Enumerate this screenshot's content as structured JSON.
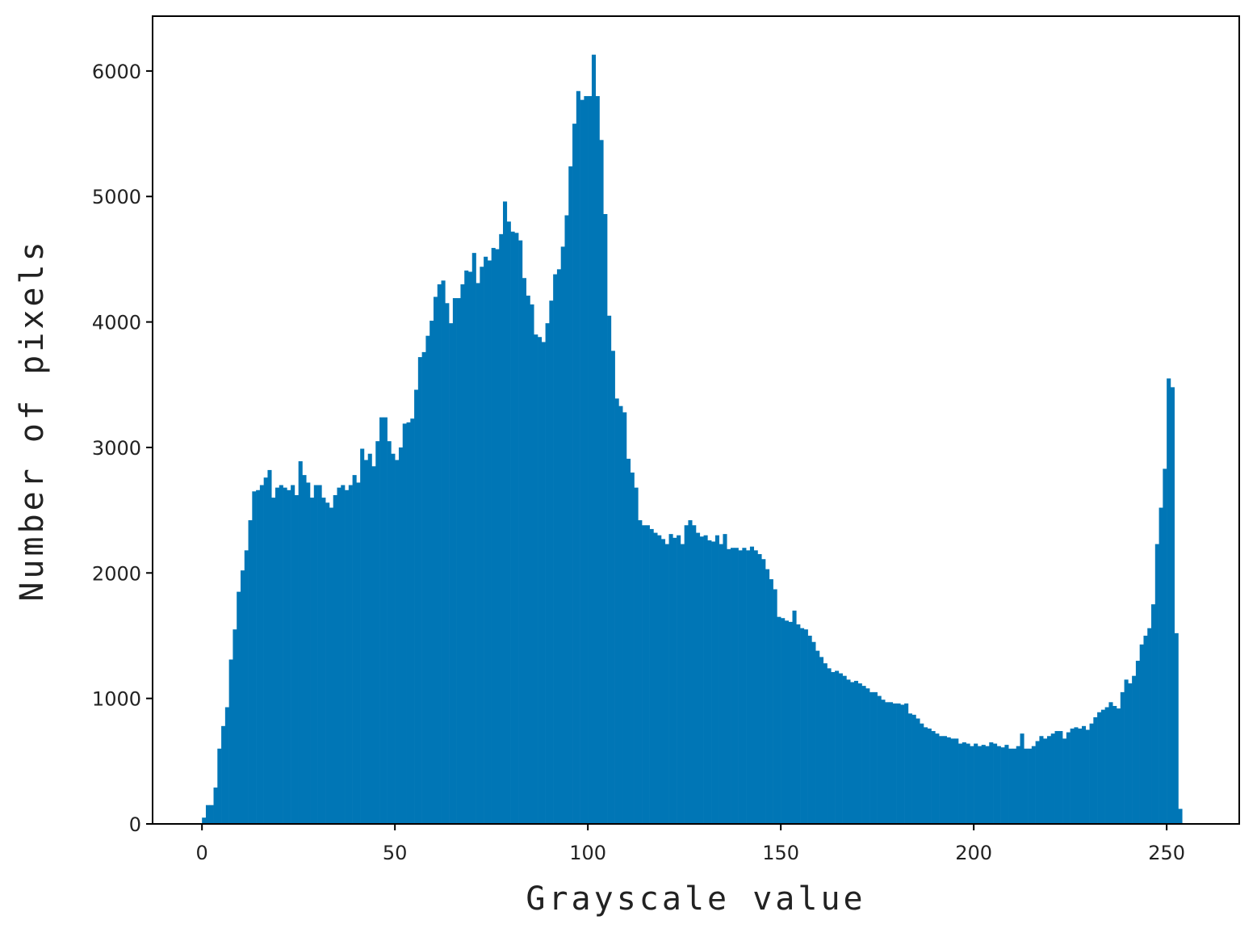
{
  "chart_data": {
    "type": "histogram",
    "xlabel": "Grayscale value",
    "ylabel": "Number of pixels",
    "color": "#0076b6",
    "xlim": [
      -12.8,
      268.8
    ],
    "ylim": [
      0,
      6437
    ],
    "xticks": [
      0,
      50,
      100,
      150,
      200,
      250
    ],
    "yticks": [
      0,
      1000,
      2000,
      3000,
      4000,
      5000,
      6000
    ],
    "bins": [
      0,
      1,
      2,
      3,
      4,
      5,
      6,
      7,
      8,
      9,
      10,
      11,
      12,
      13,
      14,
      15,
      16,
      17,
      18,
      19,
      20,
      21,
      22,
      23,
      24,
      25,
      26,
      27,
      28,
      29,
      30,
      31,
      32,
      33,
      34,
      35,
      36,
      37,
      38,
      39,
      40,
      41,
      42,
      43,
      44,
      45,
      46,
      47,
      48,
      49,
      50,
      51,
      52,
      53,
      54,
      55,
      56,
      57,
      58,
      59,
      60,
      61,
      62,
      63,
      64,
      65,
      66,
      67,
      68,
      69,
      70,
      71,
      72,
      73,
      74,
      75,
      76,
      77,
      78,
      79,
      80,
      81,
      82,
      83,
      84,
      85,
      86,
      87,
      88,
      89,
      90,
      91,
      92,
      93,
      94,
      95,
      96,
      97,
      98,
      99,
      100,
      101,
      102,
      103,
      104,
      105,
      106,
      107,
      108,
      109,
      110,
      111,
      112,
      113,
      114,
      115,
      116,
      117,
      118,
      119,
      120,
      121,
      122,
      123,
      124,
      125,
      126,
      127,
      128,
      129,
      130,
      131,
      132,
      133,
      134,
      135,
      136,
      137,
      138,
      139,
      140,
      141,
      142,
      143,
      144,
      145,
      146,
      147,
      148,
      149,
      150,
      151,
      152,
      153,
      154,
      155,
      156,
      157,
      158,
      159,
      160,
      161,
      162,
      163,
      164,
      165,
      166,
      167,
      168,
      169,
      170,
      171,
      172,
      173,
      174,
      175,
      176,
      177,
      178,
      179,
      180,
      181,
      182,
      183,
      184,
      185,
      186,
      187,
      188,
      189,
      190,
      191,
      192,
      193,
      194,
      195,
      196,
      197,
      198,
      199,
      200,
      201,
      202,
      203,
      204,
      205,
      206,
      207,
      208,
      209,
      210,
      211,
      212,
      213,
      214,
      215,
      216,
      217,
      218,
      219,
      220,
      221,
      222,
      223,
      224,
      225,
      226,
      227,
      228,
      229,
      230,
      231,
      232,
      233,
      234,
      235,
      236,
      237,
      238,
      239,
      240,
      241,
      242,
      243,
      244,
      245,
      246,
      247,
      248,
      249,
      250,
      251,
      252,
      253,
      254,
      255,
      256
    ],
    "counts": [
      50,
      150,
      150,
      290,
      600,
      780,
      930,
      1310,
      1550,
      1850,
      2020,
      2180,
      2420,
      2650,
      2660,
      2700,
      2760,
      2820,
      2600,
      2680,
      2700,
      2680,
      2660,
      2700,
      2620,
      2890,
      2780,
      2720,
      2600,
      2700,
      2700,
      2600,
      2560,
      2520,
      2620,
      2680,
      2700,
      2660,
      2700,
      2780,
      2720,
      2990,
      2900,
      2950,
      2850,
      3050,
      3240,
      3240,
      3050,
      2950,
      2900,
      3000,
      3190,
      3200,
      3230,
      3460,
      3720,
      3760,
      3890,
      4010,
      4200,
      4300,
      4330,
      4150,
      3990,
      4190,
      4190,
      4300,
      4410,
      4400,
      4550,
      4310,
      4440,
      4520,
      4490,
      4590,
      4580,
      4700,
      4960,
      4800,
      4720,
      4710,
      4650,
      4350,
      4210,
      4140,
      3900,
      3880,
      3840,
      3990,
      4170,
      4380,
      4420,
      4600,
      4850,
      5240,
      5580,
      5840,
      5770,
      5800,
      5800,
      6130,
      5800,
      5450,
      4860,
      4050,
      3770,
      3390,
      3330,
      3280,
      2910,
      2800,
      2680,
      2420,
      2380,
      2380,
      2350,
      2320,
      2300,
      2270,
      2230,
      2310,
      2280,
      2300,
      2230,
      2380,
      2420,
      2380,
      2320,
      2290,
      2300,
      2260,
      2250,
      2300,
      2230,
      2310,
      2190,
      2200,
      2200,
      2180,
      2200,
      2180,
      2210,
      2180,
      2150,
      2110,
      2030,
      1950,
      1870,
      1650,
      1640,
      1620,
      1610,
      1700,
      1590,
      1560,
      1550,
      1500,
      1450,
      1380,
      1330,
      1280,
      1240,
      1210,
      1220,
      1200,
      1180,
      1150,
      1130,
      1140,
      1120,
      1100,
      1080,
      1050,
      1050,
      1020,
      990,
      970,
      970,
      960,
      960,
      950,
      960,
      880,
      870,
      840,
      800,
      770,
      760,
      740,
      720,
      700,
      700,
      690,
      680,
      680,
      640,
      650,
      640,
      620,
      640,
      620,
      630,
      620,
      650,
      640,
      620,
      610,
      630,
      600,
      600,
      620,
      720,
      600,
      600,
      620,
      660,
      700,
      680,
      700,
      720,
      740,
      740,
      680,
      730,
      760,
      770,
      760,
      780,
      750,
      800,
      850,
      890,
      910,
      930,
      970,
      940,
      920,
      1050,
      1150,
      1120,
      1180,
      1300,
      1430,
      1500,
      1560,
      1750,
      2230,
      2520,
      2830,
      3550,
      3480,
      1520,
      120,
      0,
      0
    ]
  }
}
